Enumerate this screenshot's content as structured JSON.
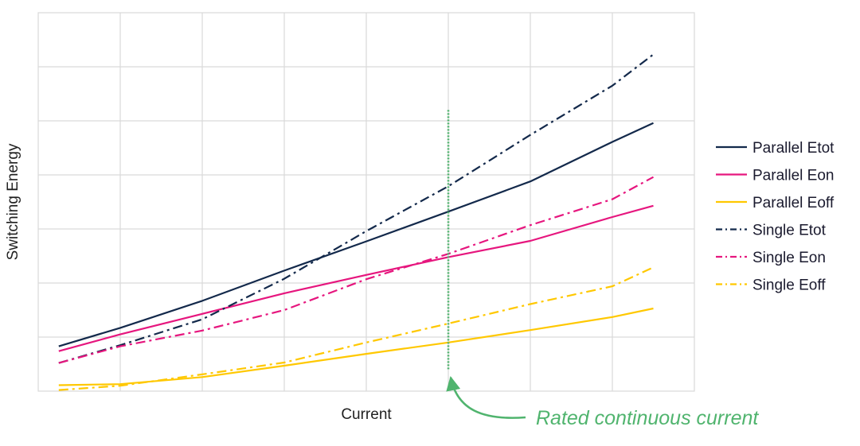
{
  "chart_data": {
    "type": "line",
    "title": "",
    "xlabel": "Current",
    "ylabel": "Switching Energy",
    "xlim": [
      0,
      8
    ],
    "ylim": [
      0,
      7
    ],
    "grid": true,
    "legend_position": "right",
    "x": [
      0.25,
      1,
      2,
      3,
      4,
      5,
      6,
      7,
      7.5
    ],
    "series": [
      {
        "name": "Parallel Etot",
        "color": "#13294b",
        "dash": "solid",
        "values": [
          0.83,
          1.17,
          1.67,
          2.23,
          2.77,
          3.32,
          3.88,
          4.61,
          4.96
        ]
      },
      {
        "name": "Parallel Eon",
        "color": "#e6167e",
        "dash": "solid",
        "values": [
          0.74,
          1.05,
          1.43,
          1.81,
          2.15,
          2.48,
          2.78,
          3.22,
          3.43
        ]
      },
      {
        "name": "Parallel Eoff",
        "color": "#ffc800",
        "dash": "solid",
        "values": [
          0.11,
          0.13,
          0.26,
          0.47,
          0.69,
          0.9,
          1.13,
          1.37,
          1.53
        ]
      },
      {
        "name": "Single Etot",
        "color": "#13294b",
        "dash": "dashdot",
        "values": [
          0.52,
          0.85,
          1.33,
          2.08,
          2.96,
          3.79,
          4.74,
          5.65,
          6.23
        ]
      },
      {
        "name": "Single Eon",
        "color": "#e6167e",
        "dash": "dashdot",
        "values": [
          0.52,
          0.83,
          1.12,
          1.5,
          2.07,
          2.54,
          3.07,
          3.55,
          3.96
        ]
      },
      {
        "name": "Single Eoff",
        "color": "#ffc800",
        "dash": "dashdot",
        "values": [
          0.02,
          0.1,
          0.31,
          0.53,
          0.9,
          1.25,
          1.61,
          1.94,
          2.29
        ]
      }
    ],
    "reference_line": {
      "x": 5,
      "y_from": 0.4,
      "y_to": 5.2,
      "color": "#50b46e",
      "style": "dotted"
    },
    "annotation": {
      "text": "Rated continuous current",
      "color": "#50b46e"
    }
  }
}
